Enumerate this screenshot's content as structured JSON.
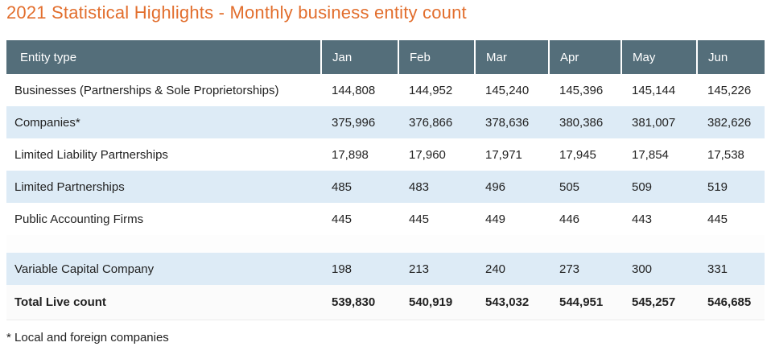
{
  "page": {
    "title": "2021 Statistical Highlights - Monthly business entity count",
    "footnote": "* Local and foreign companies"
  },
  "colors": {
    "accent": "#e26e2d",
    "header_bg": "#546e7a",
    "row_alt_bg": "#ddebf6",
    "header_text": "#ffffff",
    "body_text": "#222222"
  },
  "table": {
    "columns": [
      "Entity type",
      "Jan",
      "Feb",
      "Mar",
      "Apr",
      "May",
      "Jun"
    ],
    "rows": [
      {
        "type": "data",
        "alt": false,
        "label": "Businesses (Partnerships & Sole Proprietorships)",
        "values": [
          "144,808",
          "144,952",
          "145,240",
          "145,396",
          "145,144",
          "145,226"
        ]
      },
      {
        "type": "data",
        "alt": true,
        "label": "Companies*",
        "values": [
          "375,996",
          "376,866",
          "378,636",
          "380,386",
          "381,007",
          "382,626"
        ]
      },
      {
        "type": "data",
        "alt": false,
        "label": "Limited Liability Partnerships",
        "values": [
          "17,898",
          "17,960",
          "17,971",
          "17,945",
          "17,854",
          "17,538"
        ]
      },
      {
        "type": "data",
        "alt": true,
        "label": "Limited Partnerships",
        "values": [
          "485",
          "483",
          "496",
          "505",
          "509",
          "519"
        ]
      },
      {
        "type": "data",
        "alt": false,
        "label": "Public Accounting Firms",
        "values": [
          "445",
          "445",
          "449",
          "446",
          "443",
          "445"
        ]
      },
      {
        "type": "spacer",
        "alt": false,
        "label": "",
        "values": []
      },
      {
        "type": "data",
        "alt": true,
        "label": "Variable Capital Company",
        "values": [
          "198",
          "213",
          "240",
          "273",
          "300",
          "331"
        ]
      },
      {
        "type": "total",
        "alt": false,
        "label": "Total Live count",
        "values": [
          "539,830",
          "540,919",
          "543,032",
          "544,951",
          "545,257",
          "546,685"
        ]
      }
    ]
  },
  "chart_data": {
    "type": "table",
    "title": "2021 Statistical Highlights - Monthly business entity count",
    "columns": [
      "Entity type",
      "Jan",
      "Feb",
      "Mar",
      "Apr",
      "May",
      "Jun"
    ],
    "rows": [
      {
        "label": "Businesses (Partnerships & Sole Proprietorships)",
        "values": [
          144808,
          144952,
          145240,
          145396,
          145144,
          145226
        ]
      },
      {
        "label": "Companies*",
        "values": [
          375996,
          376866,
          378636,
          380386,
          381007,
          382626
        ]
      },
      {
        "label": "Limited Liability Partnerships",
        "values": [
          17898,
          17960,
          17971,
          17945,
          17854,
          17538
        ]
      },
      {
        "label": "Limited Partnerships",
        "values": [
          485,
          483,
          496,
          505,
          509,
          519
        ]
      },
      {
        "label": "Public Accounting Firms",
        "values": [
          445,
          445,
          449,
          446,
          443,
          445
        ]
      },
      {
        "label": "Variable Capital Company",
        "values": [
          198,
          213,
          240,
          273,
          300,
          331
        ]
      },
      {
        "label": "Total Live count",
        "values": [
          539830,
          540919,
          543032,
          544951,
          545257,
          546685
        ]
      }
    ],
    "footnote": "* Local and foreign companies"
  }
}
